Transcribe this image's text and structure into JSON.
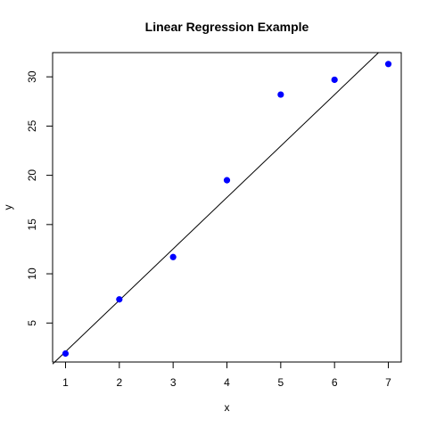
{
  "chart_data": {
    "type": "scatter",
    "title": "Linear Regression Example",
    "xlabel": "x",
    "ylabel": "y",
    "xlim": [
      0.76,
      7.24
    ],
    "ylim": [
      1.04,
      32.46
    ],
    "xticks": [
      1,
      2,
      3,
      4,
      5,
      6,
      7
    ],
    "yticks": [
      5,
      10,
      15,
      20,
      25,
      30
    ],
    "grid": false,
    "legend": "none",
    "series": [
      {
        "type": "scatter",
        "x": [
          1,
          2,
          3,
          4,
          5,
          6,
          7
        ],
        "y": [
          1.9,
          7.4,
          11.7,
          19.5,
          28.2,
          29.7,
          31.3
        ],
        "color": "#0000ff"
      },
      {
        "type": "line",
        "description_free": true,
        "intercept": -3.13,
        "slope": 5.22,
        "color": "#000000"
      }
    ]
  }
}
